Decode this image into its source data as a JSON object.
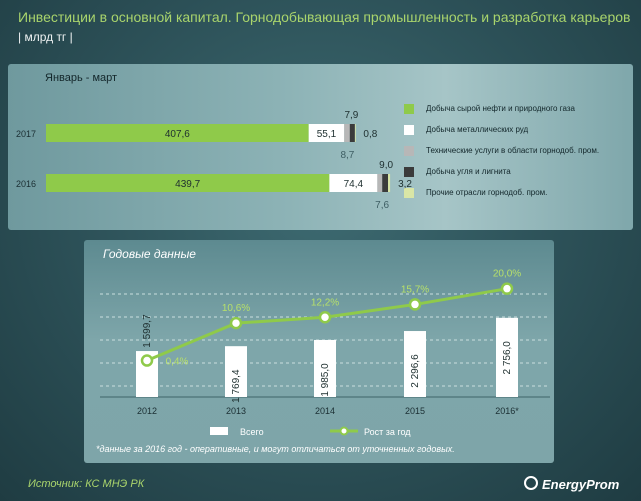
{
  "title": "Инвестиции в основной капитал. Горнодобывающая  промышленность  и разработка карьеров",
  "unit": "| млрд тг |",
  "quarterly": {
    "period": "Январь - март",
    "categories": [
      "2017",
      "2016"
    ],
    "series": [
      {
        "name": "Добыча сырой нефти и природного  газа",
        "values": [
          407.6,
          439.7
        ],
        "labels": [
          "407,6",
          "439,7"
        ],
        "color": "#8fca4a"
      },
      {
        "name": "Добыча металлических руд",
        "values": [
          55.1,
          74.4
        ],
        "labels": [
          "55,1",
          "74,4"
        ],
        "color": "#ffffff"
      },
      {
        "name": "Технические услуги в области горнодоб. пром.",
        "values": [
          8.7,
          7.6
        ],
        "labels": [
          "8,7",
          "7,6"
        ],
        "color": "#b7b7b7"
      },
      {
        "name": "Добыча угля и лигнита",
        "values": [
          7.9,
          9.0
        ],
        "labels": [
          "7,9",
          "9,0"
        ],
        "color": "#3b3b3b"
      },
      {
        "name": "Прочие отрасли горнодоб.  пром.",
        "values": [
          0.8,
          3.2
        ],
        "labels": [
          "0,8",
          "3,2"
        ],
        "color": "#d9e6a6"
      }
    ]
  },
  "chart_data": [
    {
      "type": "bar",
      "title": "Январь - март",
      "orientation": "horizontal",
      "stacked": true,
      "categories": [
        "2017",
        "2016"
      ],
      "series": [
        {
          "name": "Добыча сырой нефти и природного  газа",
          "values": [
            407.6,
            439.7
          ]
        },
        {
          "name": "Добыча металлических руд",
          "values": [
            55.1,
            74.4
          ]
        },
        {
          "name": "Технические услуги в области горнодоб. пром.",
          "values": [
            8.7,
            7.6
          ]
        },
        {
          "name": "Добыча угля и лигнита",
          "values": [
            7.9,
            9.0
          ]
        },
        {
          "name": "Прочие отрасли горнодоб.  пром.",
          "values": [
            0.8,
            3.2
          ]
        }
      ],
      "xlabel": "",
      "ylabel": "млрд тг"
    },
    {
      "type": "bar+line",
      "title": "Годовые данные",
      "categories": [
        "2012",
        "2013",
        "2014",
        "2015",
        "2016*"
      ],
      "series": [
        {
          "name": "Всего",
          "values": [
            1599.7,
            1769.4,
            1985.0,
            2296.6,
            2756.0
          ],
          "labels": [
            "1 599,7",
            "1 769,4",
            "1 985,0",
            "2 296,6",
            "2 756,0"
          ]
        },
        {
          "name": "Рост за год",
          "values": [
            0.4,
            10.6,
            12.2,
            15.7,
            20.0
          ],
          "labels": [
            "0,4%",
            "10,6%",
            "12,2%",
            "15,7%",
            "20,0%"
          ]
        }
      ],
      "ylim": [
        0,
        2900
      ],
      "grid": true,
      "legend": "bottom"
    }
  ],
  "annual": {
    "title": "Годовые данные",
    "legend_total": "Всего",
    "legend_growth": "Рост за год",
    "footnote": "*данные за 2016 год - оперативные, и могут отличаться от уточненных годовых."
  },
  "source": "Источник: КС МНЭ РК",
  "brand": "EnergyProm",
  "colors": {
    "title": "#a9d46c",
    "line": "#8fca4a"
  }
}
